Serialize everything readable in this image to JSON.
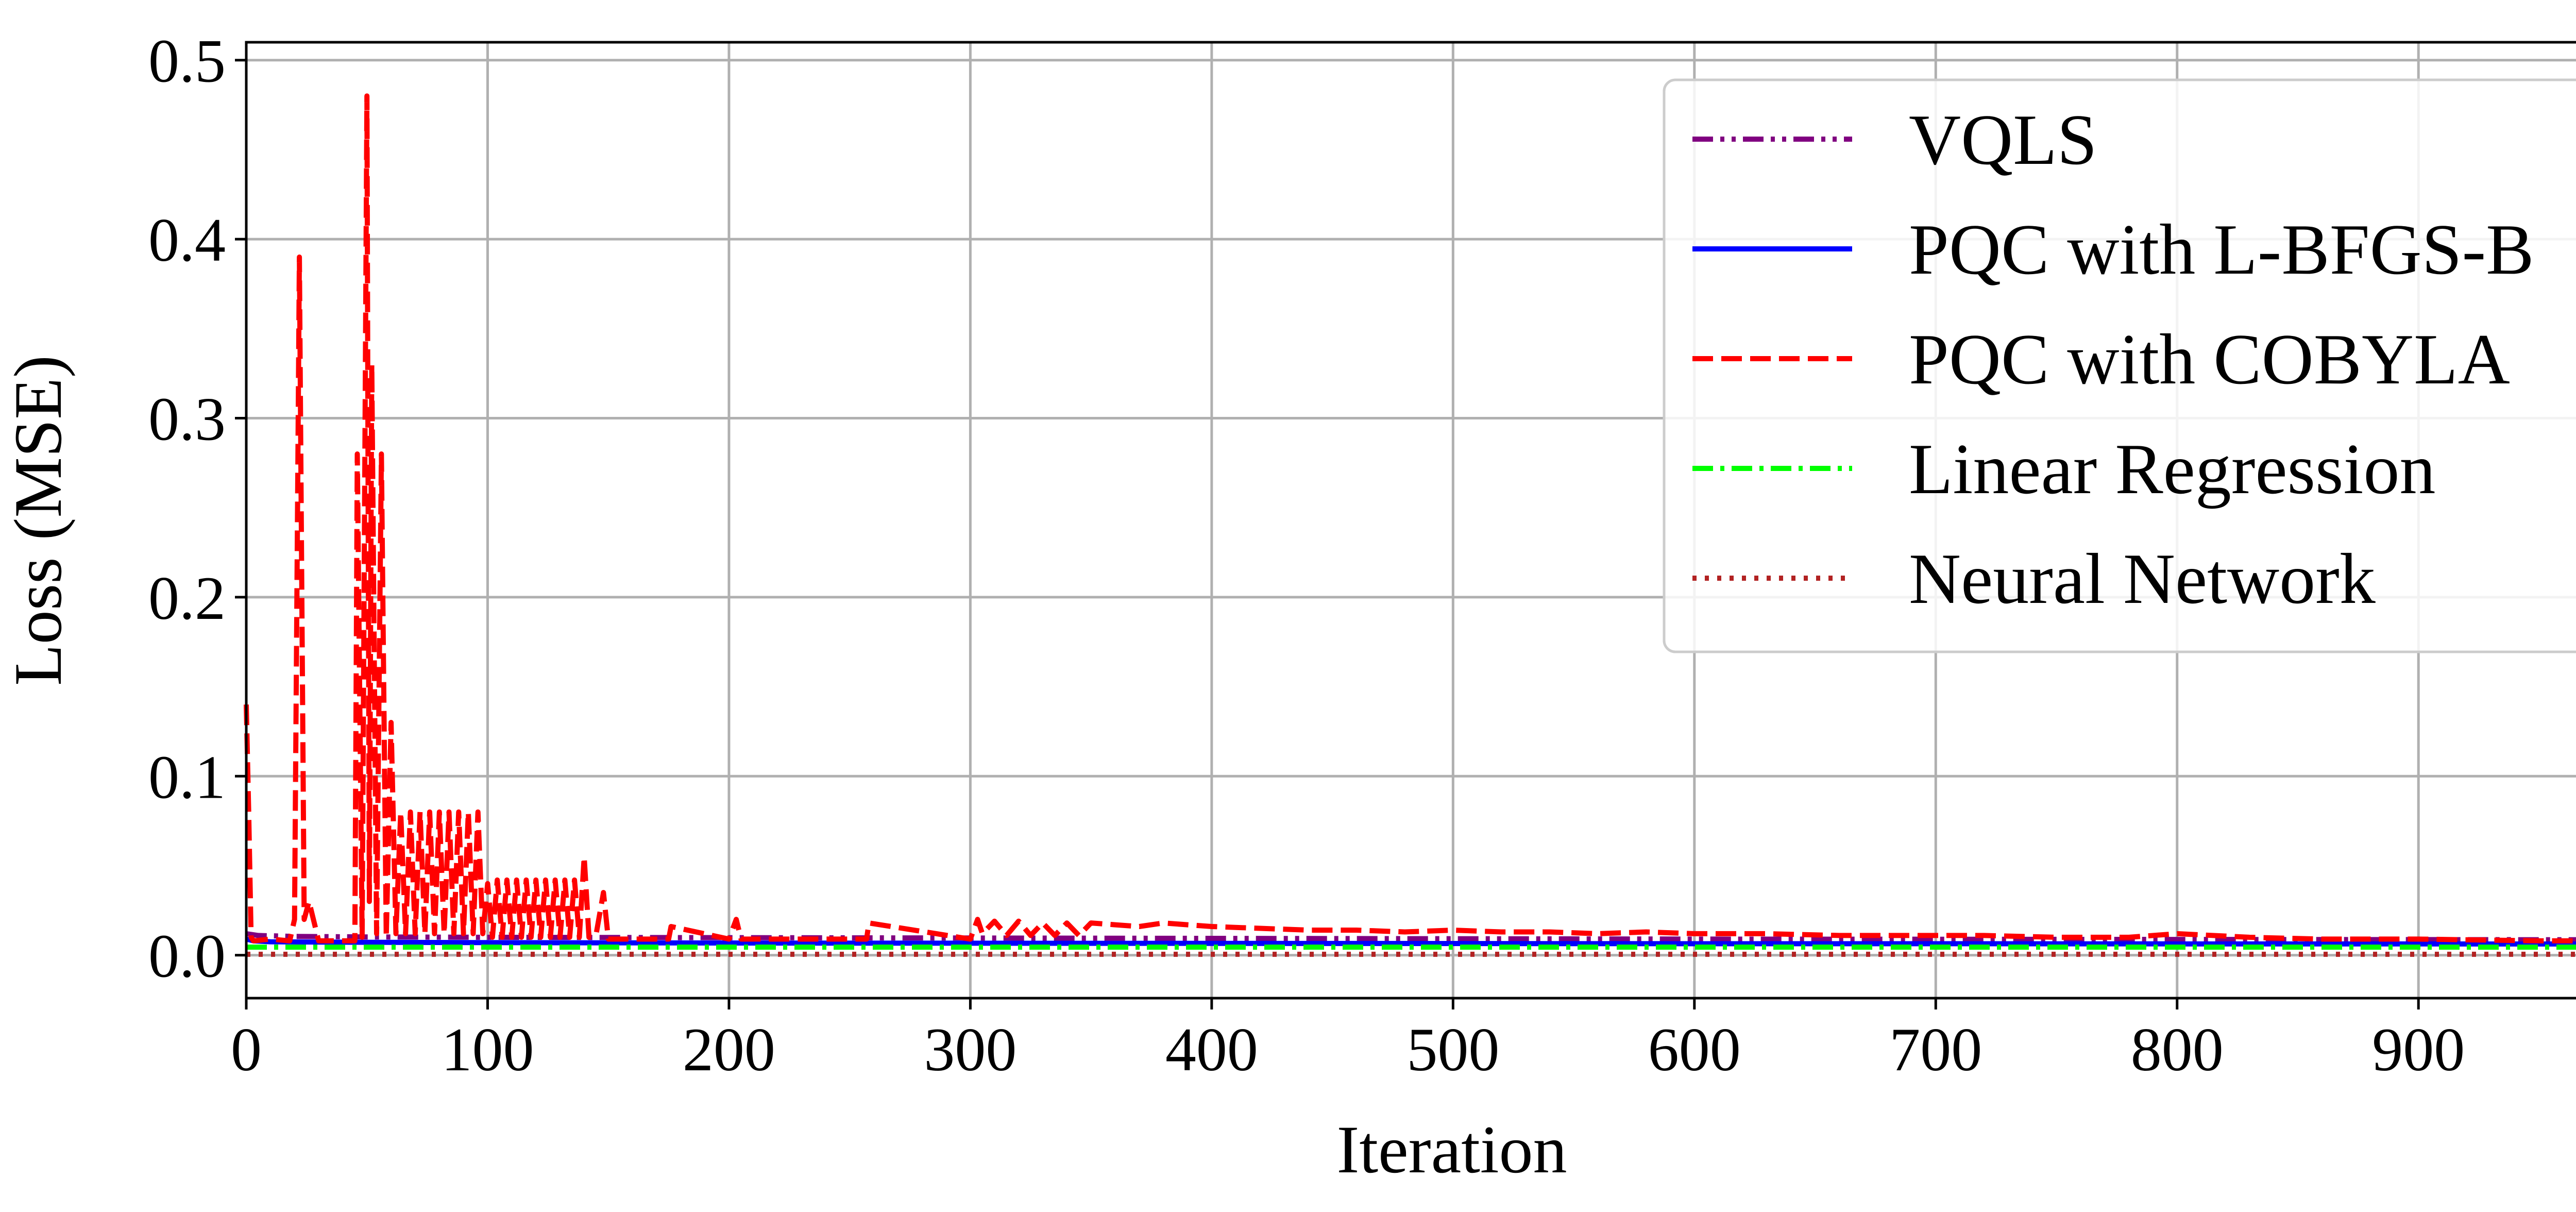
{
  "chart_data": {
    "type": "line",
    "title": "",
    "xlabel": "Iteration",
    "ylabel": "Loss (MSE)",
    "xlim": [
      0,
      999
    ],
    "ylim": [
      -0.024,
      0.51
    ],
    "x_ticks": [
      0,
      100,
      200,
      300,
      400,
      500,
      600,
      700,
      800,
      900
    ],
    "x_tick_labels": [
      "0",
      "100",
      "200",
      "300",
      "400",
      "500",
      "600",
      "700",
      "800",
      "900"
    ],
    "y_ticks": [
      0.0,
      0.1,
      0.2,
      0.3,
      0.4,
      0.5
    ],
    "y_tick_labels": [
      "0.0",
      "0.1",
      "0.2",
      "0.3",
      "0.4",
      "0.5"
    ],
    "grid": true,
    "legend_position": "top-right",
    "series": [
      {
        "name": "VQLS",
        "color": "#800080",
        "style": "dashdotdot",
        "x": [
          0,
          5,
          20,
          50,
          100,
          200,
          300,
          400,
          500,
          600,
          700,
          800,
          900,
          999
        ],
        "y": [
          0.012,
          0.011,
          0.0105,
          0.0102,
          0.01,
          0.0098,
          0.0096,
          0.0094,
          0.0092,
          0.009,
          0.0089,
          0.0088,
          0.0087,
          0.0086
        ]
      },
      {
        "name": "PQC with L-BFGS-B",
        "color": "#0000ff",
        "style": "solid",
        "x": [
          0,
          3,
          10,
          50,
          100,
          200,
          300,
          400,
          500,
          600,
          700,
          800,
          900,
          999
        ],
        "y": [
          0.009,
          0.008,
          0.0075,
          0.0072,
          0.007,
          0.0068,
          0.0067,
          0.0066,
          0.0065,
          0.0064,
          0.0064,
          0.0063,
          0.0063,
          0.0062
        ]
      },
      {
        "name": "PQC with COBYLA",
        "color": "#ff0000",
        "style": "dashed",
        "x": [
          0,
          1,
          2,
          3,
          10,
          18,
          20,
          22,
          24,
          26,
          30,
          40,
          45,
          46,
          48,
          50,
          51,
          52,
          54,
          56,
          58,
          60,
          62,
          64,
          66,
          68,
          70,
          72,
          74,
          76,
          78,
          80,
          82,
          84,
          86,
          88,
          90,
          92,
          94,
          96,
          98,
          100,
          102,
          104,
          106,
          108,
          110,
          112,
          114,
          116,
          118,
          120,
          122,
          124,
          126,
          128,
          130,
          132,
          134,
          136,
          138,
          140,
          142,
          145,
          148,
          150,
          160,
          175,
          176,
          200,
          203,
          205,
          240,
          257,
          258,
          300,
          303,
          305,
          310,
          315,
          320,
          325,
          330,
          335,
          340,
          345,
          350,
          360,
          370,
          380,
          390,
          400,
          420,
          440,
          460,
          480,
          500,
          520,
          540,
          560,
          580,
          600,
          630,
          660,
          690,
          720,
          750,
          780,
          800,
          830,
          860,
          900,
          950,
          999
        ],
        "y": [
          0.14,
          0.08,
          0.01,
          0.008,
          0.009,
          0.008,
          0.02,
          0.39,
          0.02,
          0.03,
          0.008,
          0.008,
          0.008,
          0.28,
          0.01,
          0.48,
          0.03,
          0.33,
          0.012,
          0.28,
          0.01,
          0.13,
          0.012,
          0.08,
          0.012,
          0.08,
          0.012,
          0.08,
          0.012,
          0.08,
          0.012,
          0.08,
          0.012,
          0.08,
          0.012,
          0.08,
          0.012,
          0.08,
          0.012,
          0.08,
          0.012,
          0.04,
          0.01,
          0.042,
          0.01,
          0.042,
          0.01,
          0.042,
          0.01,
          0.042,
          0.01,
          0.042,
          0.01,
          0.042,
          0.01,
          0.042,
          0.01,
          0.042,
          0.01,
          0.042,
          0.01,
          0.055,
          0.01,
          0.012,
          0.035,
          0.009,
          0.009,
          0.009,
          0.016,
          0.009,
          0.02,
          0.009,
          0.009,
          0.009,
          0.018,
          0.009,
          0.02,
          0.012,
          0.019,
          0.011,
          0.019,
          0.011,
          0.018,
          0.011,
          0.018,
          0.011,
          0.018,
          0.017,
          0.016,
          0.018,
          0.017,
          0.016,
          0.015,
          0.014,
          0.014,
          0.013,
          0.014,
          0.013,
          0.013,
          0.012,
          0.013,
          0.012,
          0.012,
          0.011,
          0.011,
          0.011,
          0.01,
          0.01,
          0.012,
          0.01,
          0.009,
          0.009,
          0.008,
          0.008
        ]
      },
      {
        "name": "Linear Regression",
        "color": "#00ff00",
        "style": "dashdot",
        "x": [
          0,
          999
        ],
        "y": [
          0.0045,
          0.0045
        ]
      },
      {
        "name": "Neural Network",
        "color": "#b22222",
        "style": "dotted",
        "x": [
          0,
          999
        ],
        "y": [
          0.0005,
          0.0005
        ]
      }
    ]
  }
}
